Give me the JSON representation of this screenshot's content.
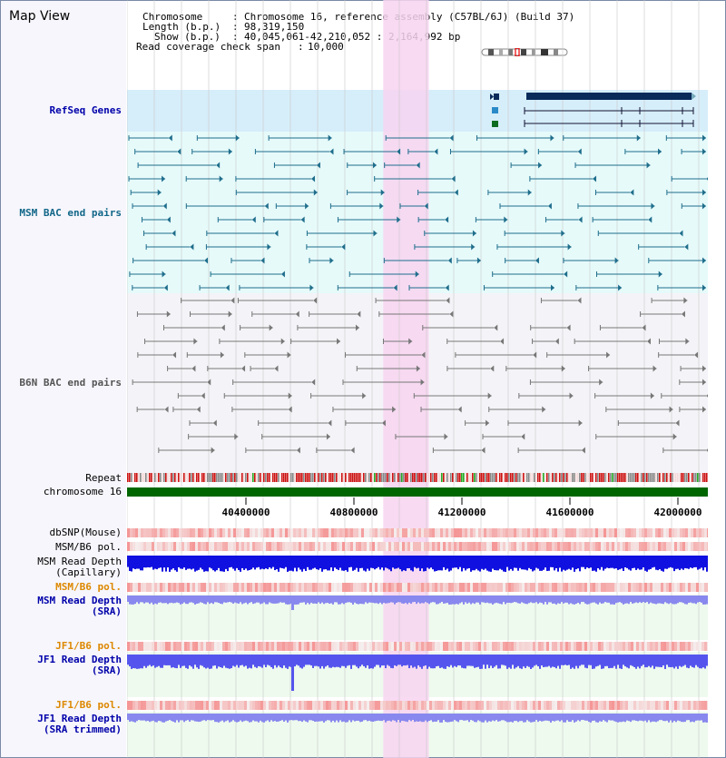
{
  "title": "Map View",
  "info": {
    "chromosome_key": "Chromosome",
    "chromosome_val": "Chromosome 16, reference assembly (C57BL/6J) (Build 37)",
    "length_key": "Length (b.p.)",
    "length_val": "98,319,150",
    "show_key": "Show (b.p.)",
    "show_val": "40,045,061-42,210,052 : 2,164,992 bp",
    "coverage_key": "Read coverage check span",
    "coverage_val": "10,000"
  },
  "tracks": {
    "refseq": "RefSeq Genes",
    "msm_bac": "MSM BAC end pairs",
    "b6n_bac": "B6N BAC end pairs",
    "repeat": "Repeat",
    "chromosome": "chromosome 16",
    "dbsnp": "dbSNP(Mouse)",
    "msm_pol": "MSM/B6 pol.",
    "msm_depth_cap_1": "MSM Read Depth",
    "msm_depth_cap_2": "(Capillary)",
    "msm_pol2": "MSM/B6 pol.",
    "msm_depth_sra_1": "MSM Read Depth",
    "msm_depth_sra_2": "(SRA)",
    "jf1_pol": "JF1/B6 pol.",
    "jf1_depth_sra_1": "JF1 Read Depth",
    "jf1_depth_sra_2": "(SRA)",
    "jf1_pol2": "JF1/B6 pol.",
    "jf1_depth_trim_1": "JF1 Read Depth",
    "jf1_depth_trim_2": "(SRA trimmed)"
  },
  "axis": {
    "ticks": [
      "40400000",
      "40800000",
      "41200000",
      "41600000",
      "42000000"
    ],
    "start": 40045061,
    "end": 42210052
  },
  "highlight": {
    "start": 41000000,
    "end": 41170000
  },
  "colors": {
    "refseq_bg": "#d6eefa",
    "msm_bg": "#e6fafa",
    "b6n_bg": "#f4f4f8",
    "highlight": "#f7d3f0",
    "msm_line": "#1f6e8c",
    "b6n_line": "#777777",
    "chromosome": "#006600",
    "refseq_dark": "#0a2a5a",
    "depth_dark": "#1010e0",
    "depth_light": "#8888ee",
    "label_blue": "#0000aa",
    "label_orange": "#dd8800",
    "label_teal": "#116688"
  }
}
